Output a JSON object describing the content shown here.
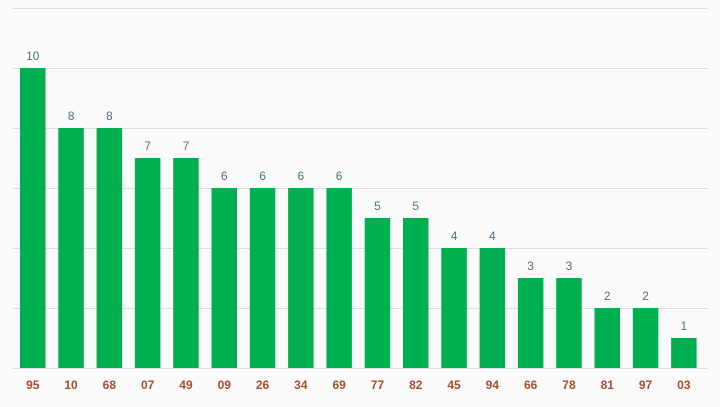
{
  "chart_data": {
    "type": "bar",
    "title": "",
    "xlabel": "",
    "ylabel": "",
    "categories": [
      "95",
      "10",
      "68",
      "07",
      "49",
      "09",
      "26",
      "34",
      "69",
      "77",
      "82",
      "45",
      "94",
      "66",
      "78",
      "81",
      "97",
      "03"
    ],
    "values": [
      10,
      8,
      8,
      7,
      7,
      6,
      6,
      6,
      6,
      5,
      5,
      4,
      4,
      3,
      3,
      2,
      2,
      1
    ],
    "ylim": [
      0,
      12
    ],
    "grid": true,
    "data_labels": true,
    "legend": "none",
    "colors": {
      "bar": "#00b050",
      "value_label": "#4d7381",
      "category_label": "#a64e2c",
      "grid": "#dcdcdc",
      "background": "#fafafa"
    }
  }
}
